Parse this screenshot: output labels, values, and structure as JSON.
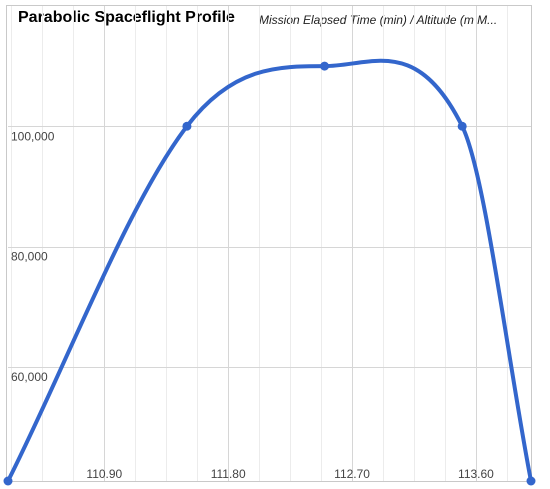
{
  "chart_data": {
    "type": "line",
    "title": "Parabolic Spaceflight Profile",
    "subtitle": "Mission Elapsed Time (min) / Altitude (m M...",
    "xlabel": "",
    "ylabel": "",
    "xlim": [
      110.2,
      114.0
    ],
    "ylim": [
      41000,
      120000
    ],
    "x_ticks": [
      110.9,
      111.8,
      112.7,
      113.6
    ],
    "x_tick_labels": [
      "110.90",
      "111.80",
      "112.70",
      "113.60"
    ],
    "y_ticks": [
      60000,
      80000,
      100000
    ],
    "y_tick_labels": [
      "60,000",
      "80,000",
      "100,000"
    ],
    "grid": true,
    "legend": "none",
    "series": [
      {
        "color": "#3366cc",
        "x": [
          110.2,
          111.5,
          112.5,
          113.5,
          114.0
        ],
        "y": [
          41000,
          100000,
          110000,
          100000,
          41000
        ]
      }
    ]
  }
}
